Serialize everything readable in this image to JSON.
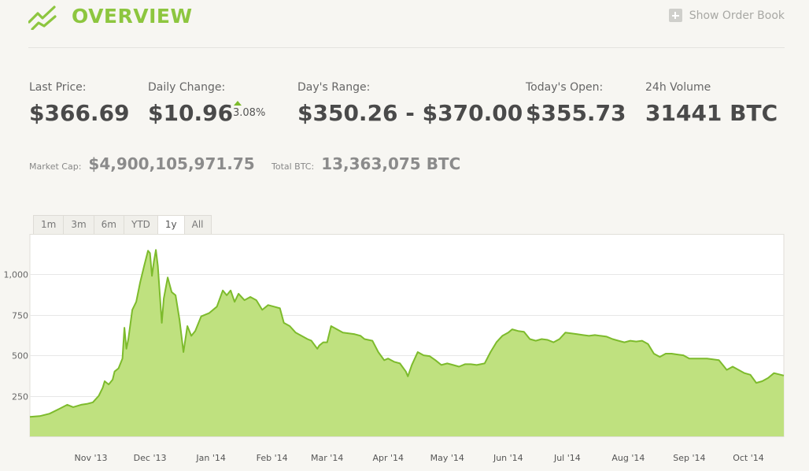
{
  "header": {
    "title": "OVERVIEW",
    "order_book_label": "Show Order Book",
    "logo_icon": "trend-chart-icon",
    "order_book_icon": "plus-icon"
  },
  "stats": {
    "last_price": {
      "label": "Last Price:",
      "value": "$366.69"
    },
    "daily_change": {
      "label": "Daily Change:",
      "value": "$10.96",
      "percent": "3.08%",
      "direction": "up"
    },
    "days_range": {
      "label": "Day's Range:",
      "value": "$350.26 - $370.00"
    },
    "todays_open": {
      "label": "Today's Open:",
      "value": "$355.73"
    },
    "volume_24h": {
      "label": "24h Volume",
      "value": "31441 BTC"
    }
  },
  "secondary": {
    "market_cap": {
      "label": "Market Cap:",
      "value": "$4,900,105,971.75"
    },
    "total_btc": {
      "label": "Total BTC:",
      "value": "13,363,075 BTC"
    }
  },
  "range_tabs": {
    "items": [
      "1m",
      "3m",
      "6m",
      "YTD",
      "1y",
      "All"
    ],
    "selected": "1y"
  },
  "colors": {
    "accent": "#8dc63f",
    "area_fill": "#bfe17f",
    "line": "#7dbb2c",
    "up": "#7dbb2c"
  },
  "chart_data": {
    "type": "area",
    "ylim": [
      0,
      1200
    ],
    "y_ticks": [
      {
        "value": 250,
        "label": "250"
      },
      {
        "value": 500,
        "label": "500"
      },
      {
        "value": 750,
        "label": "750"
      },
      {
        "value": 1000,
        "label": "1,000"
      }
    ],
    "x_domain": [
      "2013-10-01",
      "2014-10-19"
    ],
    "x_ticks": [
      {
        "date": "2013-11-01",
        "label": "Nov '13"
      },
      {
        "date": "2013-12-01",
        "label": "Dec '13"
      },
      {
        "date": "2014-01-01",
        "label": "Jan '14"
      },
      {
        "date": "2014-02-01",
        "label": "Feb '14"
      },
      {
        "date": "2014-03-01",
        "label": "Mar '14"
      },
      {
        "date": "2014-04-01",
        "label": "Apr '14"
      },
      {
        "date": "2014-05-01",
        "label": "May '14"
      },
      {
        "date": "2014-06-01",
        "label": "Jun '14"
      },
      {
        "date": "2014-07-01",
        "label": "Jul '14"
      },
      {
        "date": "2014-08-01",
        "label": "Aug '14"
      },
      {
        "date": "2014-09-01",
        "label": "Sep '14"
      },
      {
        "date": "2014-10-01",
        "label": "Oct '14"
      }
    ],
    "series": [
      {
        "points": [
          [
            "2013-10-01",
            120
          ],
          [
            "2013-10-06",
            125
          ],
          [
            "2013-10-11",
            140
          ],
          [
            "2013-10-16",
            170
          ],
          [
            "2013-10-20",
            195
          ],
          [
            "2013-10-23",
            180
          ],
          [
            "2013-10-27",
            195
          ],
          [
            "2013-10-30",
            200
          ],
          [
            "2013-11-02",
            210
          ],
          [
            "2013-11-05",
            250
          ],
          [
            "2013-11-07",
            300
          ],
          [
            "2013-11-08",
            340
          ],
          [
            "2013-11-10",
            320
          ],
          [
            "2013-11-12",
            350
          ],
          [
            "2013-11-13",
            400
          ],
          [
            "2013-11-15",
            420
          ],
          [
            "2013-11-17",
            480
          ],
          [
            "2013-11-18",
            670
          ],
          [
            "2013-11-19",
            540
          ],
          [
            "2013-11-20",
            600
          ],
          [
            "2013-11-22",
            780
          ],
          [
            "2013-11-24",
            830
          ],
          [
            "2013-11-26",
            950
          ],
          [
            "2013-11-28",
            1050
          ],
          [
            "2013-11-30",
            1145
          ],
          [
            "2013-12-01",
            1130
          ],
          [
            "2013-12-02",
            990
          ],
          [
            "2013-12-03",
            1080
          ],
          [
            "2013-12-04",
            1150
          ],
          [
            "2013-12-05",
            1050
          ],
          [
            "2013-12-07",
            700
          ],
          [
            "2013-12-08",
            850
          ],
          [
            "2013-12-10",
            980
          ],
          [
            "2013-12-12",
            890
          ],
          [
            "2013-12-14",
            870
          ],
          [
            "2013-12-16",
            720
          ],
          [
            "2013-12-18",
            520
          ],
          [
            "2013-12-20",
            680
          ],
          [
            "2013-12-22",
            620
          ],
          [
            "2013-12-24",
            650
          ],
          [
            "2013-12-27",
            740
          ],
          [
            "2013-12-31",
            760
          ],
          [
            "2014-01-04",
            800
          ],
          [
            "2014-01-07",
            900
          ],
          [
            "2014-01-09",
            870
          ],
          [
            "2014-01-11",
            900
          ],
          [
            "2014-01-13",
            830
          ],
          [
            "2014-01-15",
            880
          ],
          [
            "2014-01-18",
            840
          ],
          [
            "2014-01-21",
            860
          ],
          [
            "2014-01-24",
            840
          ],
          [
            "2014-01-27",
            780
          ],
          [
            "2014-01-30",
            810
          ],
          [
            "2014-02-02",
            800
          ],
          [
            "2014-02-05",
            790
          ],
          [
            "2014-02-07",
            700
          ],
          [
            "2014-02-10",
            680
          ],
          [
            "2014-02-13",
            640
          ],
          [
            "2014-02-16",
            620
          ],
          [
            "2014-02-19",
            600
          ],
          [
            "2014-02-21",
            590
          ],
          [
            "2014-02-24",
            540
          ],
          [
            "2014-02-25",
            560
          ],
          [
            "2014-02-27",
            580
          ],
          [
            "2014-03-01",
            580
          ],
          [
            "2014-03-03",
            680
          ],
          [
            "2014-03-06",
            660
          ],
          [
            "2014-03-09",
            640
          ],
          [
            "2014-03-12",
            635
          ],
          [
            "2014-03-15",
            630
          ],
          [
            "2014-03-18",
            620
          ],
          [
            "2014-03-20",
            600
          ],
          [
            "2014-03-24",
            590
          ],
          [
            "2014-03-27",
            520
          ],
          [
            "2014-03-30",
            470
          ],
          [
            "2014-04-01",
            480
          ],
          [
            "2014-04-04",
            460
          ],
          [
            "2014-04-07",
            450
          ],
          [
            "2014-04-10",
            400
          ],
          [
            "2014-04-11",
            370
          ],
          [
            "2014-04-13",
            440
          ],
          [
            "2014-04-16",
            520
          ],
          [
            "2014-04-19",
            500
          ],
          [
            "2014-04-22",
            495
          ],
          [
            "2014-04-25",
            470
          ],
          [
            "2014-04-28",
            440
          ],
          [
            "2014-05-01",
            450
          ],
          [
            "2014-05-04",
            440
          ],
          [
            "2014-05-07",
            430
          ],
          [
            "2014-05-10",
            445
          ],
          [
            "2014-05-13",
            445
          ],
          [
            "2014-05-16",
            440
          ],
          [
            "2014-05-20",
            450
          ],
          [
            "2014-05-23",
            520
          ],
          [
            "2014-05-26",
            580
          ],
          [
            "2014-05-29",
            620
          ],
          [
            "2014-06-01",
            640
          ],
          [
            "2014-06-03",
            660
          ],
          [
            "2014-06-06",
            650
          ],
          [
            "2014-06-09",
            645
          ],
          [
            "2014-06-12",
            600
          ],
          [
            "2014-06-15",
            590
          ],
          [
            "2014-06-18",
            600
          ],
          [
            "2014-06-21",
            595
          ],
          [
            "2014-06-24",
            580
          ],
          [
            "2014-06-27",
            600
          ],
          [
            "2014-06-30",
            640
          ],
          [
            "2014-07-03",
            635
          ],
          [
            "2014-07-06",
            630
          ],
          [
            "2014-07-09",
            625
          ],
          [
            "2014-07-12",
            620
          ],
          [
            "2014-07-15",
            625
          ],
          [
            "2014-07-18",
            620
          ],
          [
            "2014-07-21",
            615
          ],
          [
            "2014-07-24",
            600
          ],
          [
            "2014-07-27",
            590
          ],
          [
            "2014-07-30",
            580
          ],
          [
            "2014-08-02",
            590
          ],
          [
            "2014-08-05",
            585
          ],
          [
            "2014-08-08",
            590
          ],
          [
            "2014-08-11",
            570
          ],
          [
            "2014-08-14",
            510
          ],
          [
            "2014-08-17",
            490
          ],
          [
            "2014-08-20",
            510
          ],
          [
            "2014-08-23",
            510
          ],
          [
            "2014-08-26",
            505
          ],
          [
            "2014-08-29",
            500
          ],
          [
            "2014-09-01",
            480
          ],
          [
            "2014-09-04",
            480
          ],
          [
            "2014-09-07",
            480
          ],
          [
            "2014-09-10",
            480
          ],
          [
            "2014-09-13",
            475
          ],
          [
            "2014-09-16",
            470
          ],
          [
            "2014-09-18",
            440
          ],
          [
            "2014-09-20",
            410
          ],
          [
            "2014-09-23",
            430
          ],
          [
            "2014-09-26",
            410
          ],
          [
            "2014-09-29",
            390
          ],
          [
            "2014-10-02",
            380
          ],
          [
            "2014-10-05",
            330
          ],
          [
            "2014-10-08",
            340
          ],
          [
            "2014-10-11",
            360
          ],
          [
            "2014-10-14",
            390
          ],
          [
            "2014-10-19",
            375
          ]
        ]
      }
    ]
  }
}
